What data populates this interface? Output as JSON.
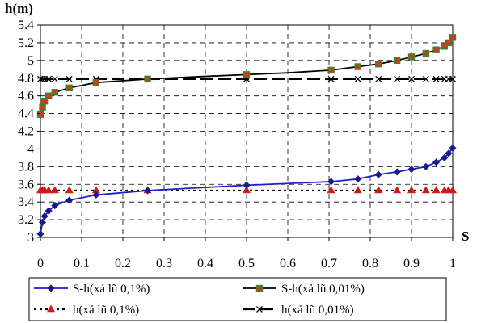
{
  "chart_data": {
    "type": "line",
    "ylabel": "h(m)",
    "xlabel": "S",
    "xlim": [
      0,
      1
    ],
    "ylim": [
      3,
      5.4
    ],
    "x_ticks": [
      "0",
      "0.1",
      "0.2",
      "0.3",
      "0.4",
      "0.5",
      "0.6",
      "0.7",
      "0.8",
      "0.9",
      "1"
    ],
    "y_ticks": [
      "3",
      "3.2",
      "3.4",
      "3.6",
      "3.8",
      "4",
      "4.2",
      "4.4",
      "4.6",
      "4.8",
      "5",
      "5.2",
      "5.4"
    ],
    "grid": true,
    "legend_position": "bottom",
    "series": [
      {
        "name": "S-h(xả lũ 0,1%)",
        "color": "#1f1fd0",
        "marker": "diamond",
        "line": "solid",
        "curve_x": [
          0,
          0.005,
          0.01,
          0.02,
          0.035,
          0.07,
          0.135,
          0.26,
          0.5,
          0.705,
          0.77,
          0.82,
          0.865,
          0.9,
          0.935,
          0.96,
          0.98,
          0.99,
          1
        ],
        "curve_y": [
          3.04,
          3.17,
          3.24,
          3.3,
          3.36,
          3.42,
          3.48,
          3.53,
          3.59,
          3.63,
          3.66,
          3.71,
          3.74,
          3.77,
          3.8,
          3.85,
          3.9,
          3.95,
          4.01
        ],
        "marker_x": [
          0,
          0.005,
          0.01,
          0.02,
          0.035,
          0.07,
          0.135,
          0.26,
          0.5,
          0.705,
          0.77,
          0.82,
          0.865,
          0.9,
          0.935,
          0.96,
          0.98,
          0.99,
          1
        ],
        "marker_y": [
          3.04,
          3.17,
          3.24,
          3.3,
          3.36,
          3.42,
          3.48,
          3.53,
          3.59,
          3.63,
          3.66,
          3.71,
          3.74,
          3.77,
          3.8,
          3.85,
          3.9,
          3.95,
          4.01
        ]
      },
      {
        "name": "S-h(xả lũ 0,01%)",
        "color": "#000000",
        "marker_color": "#d03a1a",
        "marker_edge": "#2e8b2e",
        "marker": "square",
        "line": "solid",
        "curve_x": [
          0,
          0.005,
          0.01,
          0.02,
          0.035,
          0.07,
          0.135,
          0.26,
          0.4,
          0.5,
          0.6,
          0.705,
          0.77,
          0.82,
          0.865,
          0.9,
          0.935,
          0.96,
          0.98,
          0.99,
          1
        ],
        "curve_y": [
          4.39,
          4.47,
          4.54,
          4.6,
          4.64,
          4.69,
          4.75,
          4.79,
          4.82,
          4.84,
          4.86,
          4.89,
          4.93,
          4.96,
          5.0,
          5.04,
          5.08,
          5.12,
          5.16,
          5.2,
          5.26
        ],
        "marker_x": [
          0,
          0.005,
          0.01,
          0.02,
          0.035,
          0.07,
          0.135,
          0.26,
          0.5,
          0.705,
          0.77,
          0.82,
          0.865,
          0.9,
          0.935,
          0.96,
          0.98,
          0.99,
          1
        ],
        "marker_y": [
          4.39,
          4.47,
          4.54,
          4.6,
          4.64,
          4.69,
          4.75,
          4.79,
          4.84,
          4.89,
          4.93,
          4.96,
          5.0,
          5.04,
          5.08,
          5.12,
          5.16,
          5.2,
          5.26
        ]
      },
      {
        "name": "h(xả lũ 0,1%)",
        "color": "#000000",
        "marker_color": "#d01a1a",
        "marker": "triangle",
        "line": "dotted",
        "curve_x": [
          0,
          1
        ],
        "curve_y": [
          3.53,
          3.53
        ],
        "marker_x": [
          0,
          0.005,
          0.01,
          0.02,
          0.035,
          0.07,
          0.135,
          0.26,
          0.5,
          0.705,
          0.77,
          0.82,
          0.865,
          0.9,
          0.935,
          0.96,
          0.98,
          0.99,
          1
        ],
        "marker_y": [
          3.53,
          3.53,
          3.53,
          3.53,
          3.53,
          3.53,
          3.53,
          3.53,
          3.53,
          3.53,
          3.53,
          3.53,
          3.53,
          3.53,
          3.53,
          3.53,
          3.53,
          3.53,
          3.53
        ]
      },
      {
        "name": "h(xả lũ 0,01%)",
        "color": "#000000",
        "marker": "x",
        "line": "dashed",
        "curve_x": [
          0,
          1
        ],
        "curve_y": [
          4.79,
          4.79
        ],
        "marker_x": [
          0,
          0.005,
          0.01,
          0.02,
          0.035,
          0.07,
          0.135,
          0.26,
          0.5,
          0.705,
          0.77,
          0.82,
          0.865,
          0.9,
          0.935,
          0.96,
          0.98,
          0.99,
          1
        ],
        "marker_y": [
          4.79,
          4.79,
          4.79,
          4.79,
          4.79,
          4.79,
          4.79,
          4.79,
          4.79,
          4.79,
          4.79,
          4.79,
          4.79,
          4.79,
          4.79,
          4.79,
          4.79,
          4.79,
          4.79
        ]
      }
    ]
  }
}
